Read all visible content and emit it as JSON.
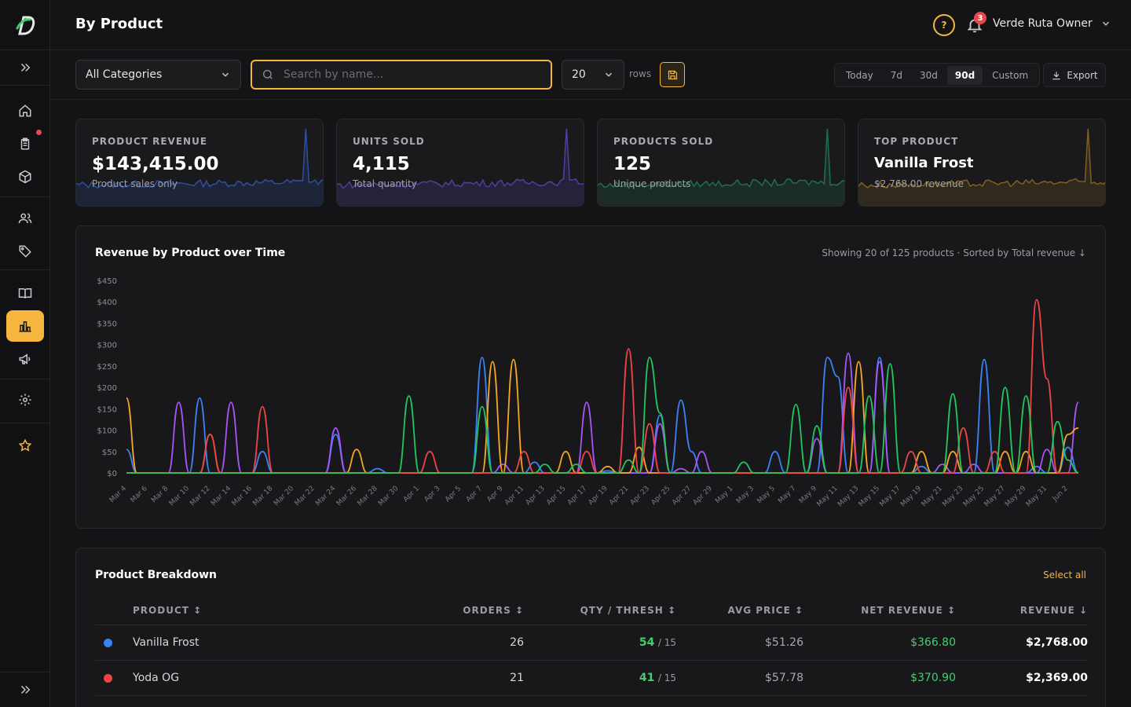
{
  "header": {
    "title": "By Product",
    "help_glyph": "?",
    "notification_count": "3",
    "user_name": "Verde Ruta Owner"
  },
  "toolbar": {
    "category_value": "All Categories",
    "search_placeholder": "Search by name...",
    "rows_value": "20",
    "rows_label": "rows",
    "ranges": [
      "Today",
      "7d",
      "30d",
      "90d",
      "Custom"
    ],
    "selected_range": "90d",
    "export_label": "Export"
  },
  "cards": [
    {
      "label": "PRODUCT REVENUE",
      "value": "$143,415.00",
      "sub": "Product sales only",
      "color": "#2f4f9f"
    },
    {
      "label": "UNITS SOLD",
      "value": "4,115",
      "sub": "Total quantity",
      "color": "#4f3f9f"
    },
    {
      "label": "PRODUCTS SOLD",
      "value": "125",
      "sub": "Unique products",
      "color": "#1f6f4f"
    },
    {
      "label": "TOP PRODUCT",
      "value": "Vanilla Frost",
      "sub": "$2,768.00 revenue",
      "color": "#7f5f1f"
    }
  ],
  "chart_panel": {
    "title": "Revenue by Product over Time",
    "meta": "Showing 20 of 125 products · Sorted by Total revenue ↓"
  },
  "chart_data": {
    "type": "line",
    "title": "Revenue by Product over Time",
    "ylim": [
      0,
      450
    ],
    "y_ticks": [
      "$0",
      "$50",
      "$100",
      "$150",
      "$200",
      "$250",
      "$300",
      "$350",
      "$400",
      "$450"
    ],
    "x_tick_labels": [
      "Mar 4",
      "Mar 6",
      "Mar 8",
      "Mar 10",
      "Mar 12",
      "Mar 14",
      "Mar 16",
      "Mar 18",
      "Mar 20",
      "Mar 22",
      "Mar 24",
      "Mar 26",
      "Mar 28",
      "Mar 30",
      "Apr 1",
      "Apr 3",
      "Apr 5",
      "Apr 7",
      "Apr 9",
      "Apr 11",
      "Apr 13",
      "Apr 15",
      "Apr 17",
      "Apr 19",
      "Apr 21",
      "Apr 23",
      "Apr 25",
      "Apr 27",
      "Apr 29",
      "May 1",
      "May 3",
      "May 5",
      "May 7",
      "May 9",
      "May 11",
      "May 13",
      "May 15",
      "May 17",
      "May 19",
      "May 21",
      "May 23",
      "May 25",
      "May 27",
      "May 29",
      "May 31",
      "Jun 2"
    ],
    "n_days": 91,
    "grid": false,
    "series": [
      {
        "color": "#3b82f6",
        "peaks": [
          [
            0,
            55
          ],
          [
            7,
            175
          ],
          [
            13,
            50
          ],
          [
            20,
            90
          ],
          [
            24,
            10
          ],
          [
            34,
            270
          ],
          [
            39,
            25
          ],
          [
            46,
            5
          ],
          [
            51,
            135
          ],
          [
            53,
            170
          ],
          [
            54,
            50
          ],
          [
            62,
            50
          ],
          [
            67,
            270
          ],
          [
            68,
            225
          ],
          [
            72,
            270
          ],
          [
            76,
            15
          ],
          [
            82,
            265
          ],
          [
            87,
            15
          ],
          [
            90,
            60
          ]
        ]
      },
      {
        "color": "#a855f7",
        "peaks": [
          [
            5,
            165
          ],
          [
            10,
            165
          ],
          [
            20,
            105
          ],
          [
            36,
            20
          ],
          [
            44,
            165
          ],
          [
            51,
            115
          ],
          [
            53,
            10
          ],
          [
            55,
            50
          ],
          [
            66,
            80
          ],
          [
            69,
            280
          ],
          [
            72,
            260
          ],
          [
            78,
            20
          ],
          [
            81,
            20
          ],
          [
            88,
            55
          ],
          [
            91,
            165
          ]
        ]
      },
      {
        "color": "#f5a623",
        "peaks": [
          [
            0,
            175
          ],
          [
            8,
            90
          ],
          [
            22,
            55
          ],
          [
            35,
            260
          ],
          [
            37,
            265
          ],
          [
            42,
            50
          ],
          [
            46,
            15
          ],
          [
            49,
            60
          ],
          [
            70,
            260
          ],
          [
            76,
            50
          ],
          [
            79,
            50
          ],
          [
            84,
            50
          ],
          [
            86,
            50
          ],
          [
            90,
            90
          ],
          [
            91,
            105
          ]
        ]
      },
      {
        "color": "#ef4444",
        "peaks": [
          [
            8,
            90
          ],
          [
            13,
            155
          ],
          [
            29,
            50
          ],
          [
            38,
            50
          ],
          [
            44,
            50
          ],
          [
            48,
            290
          ],
          [
            50,
            115
          ],
          [
            69,
            200
          ],
          [
            75,
            50
          ],
          [
            80,
            105
          ],
          [
            83,
            50
          ],
          [
            87,
            405
          ],
          [
            88,
            220
          ]
        ]
      },
      {
        "color": "#22c55e",
        "peaks": [
          [
            27,
            180
          ],
          [
            34,
            155
          ],
          [
            40,
            20
          ],
          [
            43,
            20
          ],
          [
            48,
            30
          ],
          [
            50,
            270
          ],
          [
            51,
            140
          ],
          [
            59,
            25
          ],
          [
            64,
            160
          ],
          [
            66,
            110
          ],
          [
            71,
            180
          ],
          [
            73,
            255
          ],
          [
            79,
            185
          ],
          [
            84,
            200
          ],
          [
            86,
            180
          ],
          [
            89,
            120
          ],
          [
            90,
            30
          ]
        ]
      }
    ]
  },
  "table": {
    "title": "Product Breakdown",
    "select_all": "Select all",
    "columns": [
      "PRODUCT ↕",
      "ORDERS ↕",
      "QTY / THRESH ↕",
      "AVG PRICE ↕",
      "NET REVENUE ↕",
      "REVENUE ↓"
    ],
    "rows": [
      {
        "color": "#3b82f6",
        "product": "Vanilla Frost",
        "orders": "26",
        "qty": "54",
        "thresh": "/ 15",
        "avg_price": "$51.26",
        "net_revenue": "$366.80",
        "revenue": "$2,768.00"
      },
      {
        "color": "#ef4444",
        "product": "Yoda OG",
        "orders": "21",
        "qty": "41",
        "thresh": "/ 15",
        "avg_price": "$57.78",
        "net_revenue": "$370.90",
        "revenue": "$2,369.00"
      }
    ]
  }
}
